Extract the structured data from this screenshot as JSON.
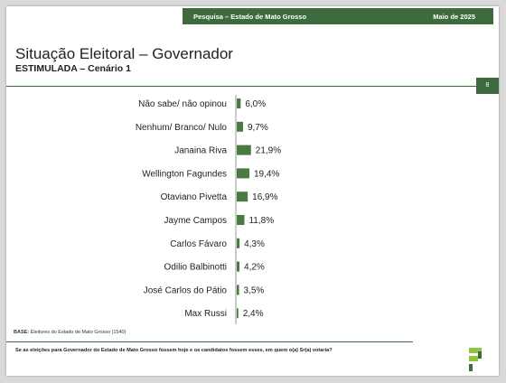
{
  "header": {
    "survey_label": "Pesquisa – Estado de Mato Grosso",
    "date_label": "Maio de 2025"
  },
  "title": "Situação Eleitoral – Governador",
  "subtitle": "ESTIMULADA – Cenário 1",
  "page_number": "8",
  "base_label": "BASE:",
  "base_text": "Eleitores do Estado de Mato Grosso (1540)",
  "question": "Se as eleições para Governador do Estado de Mato Grosso fossem hoje e os candidatos fossem esses, em quem o(a) Sr(a) votaria?",
  "colors": {
    "accent": "#3e6b3e",
    "bar": "#4a7a42",
    "logo_green": "#8dc63f"
  },
  "chart_data": {
    "type": "bar",
    "orientation": "horizontal",
    "categories": [
      "Não sabe/ não opinou",
      "Nenhum/ Branco/ Nulo",
      "Janaina Riva",
      "Wellington Fagundes",
      "Otaviano Pivetta",
      "Jayme Campos",
      "Carlos Fávaro",
      "Odilio Balbinotti",
      "José Carlos do Pátio",
      "Max Russi"
    ],
    "values": [
      6.0,
      9.7,
      21.9,
      19.4,
      16.9,
      11.8,
      4.3,
      4.2,
      3.5,
      2.4
    ],
    "value_labels": [
      "6,0%",
      "9,7%",
      "21,9%",
      "19,4%",
      "16,9%",
      "11,8%",
      "4,3%",
      "4,2%",
      "3,5%",
      "2,4%"
    ],
    "unit": "%",
    "grid": false,
    "legend": "none"
  }
}
